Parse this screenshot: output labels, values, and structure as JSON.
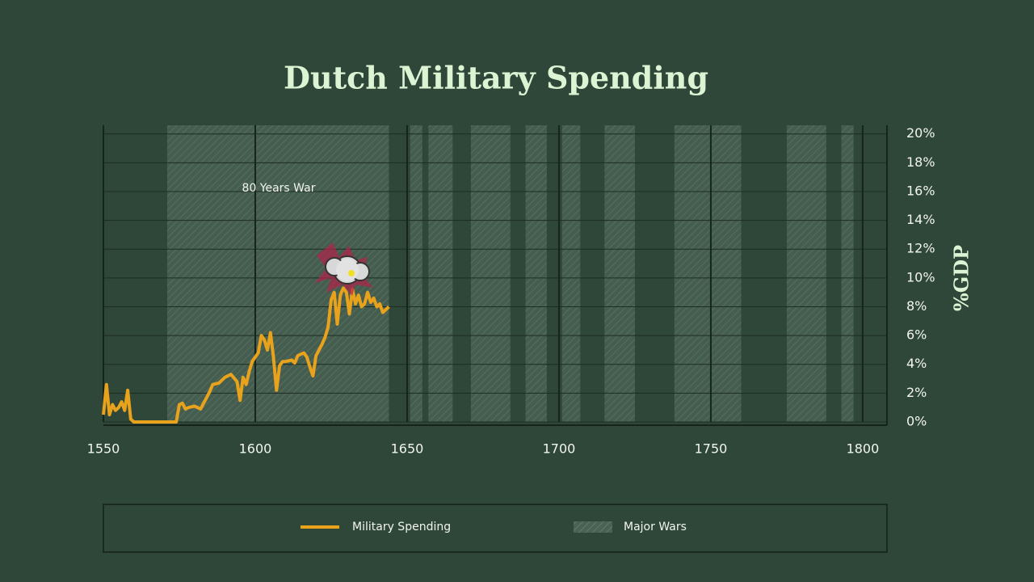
{
  "chart_data": {
    "type": "line",
    "title": "Dutch Military Spending",
    "ylabel": "%GDP",
    "annotation": "80 Years War",
    "x": [
      1550,
      1551,
      1552,
      1553,
      1554,
      1555,
      1556,
      1557,
      1558,
      1559,
      1560,
      1565,
      1570,
      1574,
      1575,
      1576,
      1577,
      1578,
      1580,
      1582,
      1583,
      1585,
      1586,
      1588,
      1590,
      1592,
      1594,
      1595,
      1596,
      1597,
      1598,
      1599,
      1600,
      1601,
      1602,
      1603,
      1604,
      1605,
      1606,
      1607,
      1608,
      1609,
      1610,
      1612,
      1613,
      1614,
      1616,
      1617,
      1618,
      1619,
      1620,
      1621,
      1622,
      1623,
      1624,
      1625,
      1626,
      1627,
      1628,
      1629,
      1630,
      1631,
      1632,
      1633,
      1634,
      1635,
      1636,
      1637,
      1638,
      1639,
      1640,
      1641,
      1642,
      1643,
      1644
    ],
    "series": [
      {
        "name": "Military Spending",
        "color": "#e9a21b",
        "values": [
          0.5,
          2.6,
          0.5,
          1.2,
          0.8,
          1.0,
          1.4,
          0.8,
          2.2,
          0.2,
          0,
          0,
          0,
          0,
          1.2,
          1.3,
          0.9,
          1.0,
          1.1,
          0.9,
          1.3,
          2.1,
          2.6,
          2.7,
          3.1,
          3.3,
          2.8,
          1.5,
          3.1,
          2.6,
          3.5,
          4.2,
          4.5,
          4.8,
          6.0,
          5.7,
          5.0,
          6.2,
          4.5,
          2.2,
          3.9,
          4.2,
          4.2,
          4.3,
          4.1,
          4.6,
          4.8,
          4.5,
          3.8,
          3.2,
          4.6,
          5.0,
          5.4,
          5.9,
          6.6,
          8.5,
          9.0,
          6.8,
          8.8,
          9.3,
          9.0,
          7.5,
          9.2,
          8.2,
          8.8,
          8.0,
          8.2,
          9.0,
          8.3,
          8.6,
          8.0,
          8.2,
          7.6,
          7.8,
          8.0
        ]
      }
    ],
    "wars": {
      "name": "Major Wars",
      "ranges": [
        [
          1571,
          1644
        ],
        [
          1651,
          1655
        ],
        [
          1657,
          1665
        ],
        [
          1671,
          1684
        ],
        [
          1689,
          1696
        ],
        [
          1701,
          1707
        ],
        [
          1715,
          1725
        ],
        [
          1738,
          1760
        ],
        [
          1775,
          1788
        ],
        [
          1793,
          1797
        ]
      ]
    },
    "xlim": [
      1550,
      1808
    ],
    "ylim": [
      0,
      20.6
    ],
    "xticks": [
      1550,
      1600,
      1650,
      1700,
      1750,
      1800
    ],
    "yticks": [
      {
        "value": 0,
        "label": "0%"
      },
      {
        "value": 2,
        "label": "2%"
      },
      {
        "value": 4,
        "label": "4%"
      },
      {
        "value": 6,
        "label": "6%"
      },
      {
        "value": 8,
        "label": "8%"
      },
      {
        "value": 10,
        "label": "10%"
      },
      {
        "value": 12,
        "label": "12%"
      },
      {
        "value": 14,
        "label": "14%"
      },
      {
        "value": 16,
        "label": "16%"
      },
      {
        "value": 18,
        "label": "18%"
      },
      {
        "value": 20,
        "label": "20%"
      }
    ],
    "grid": true
  }
}
